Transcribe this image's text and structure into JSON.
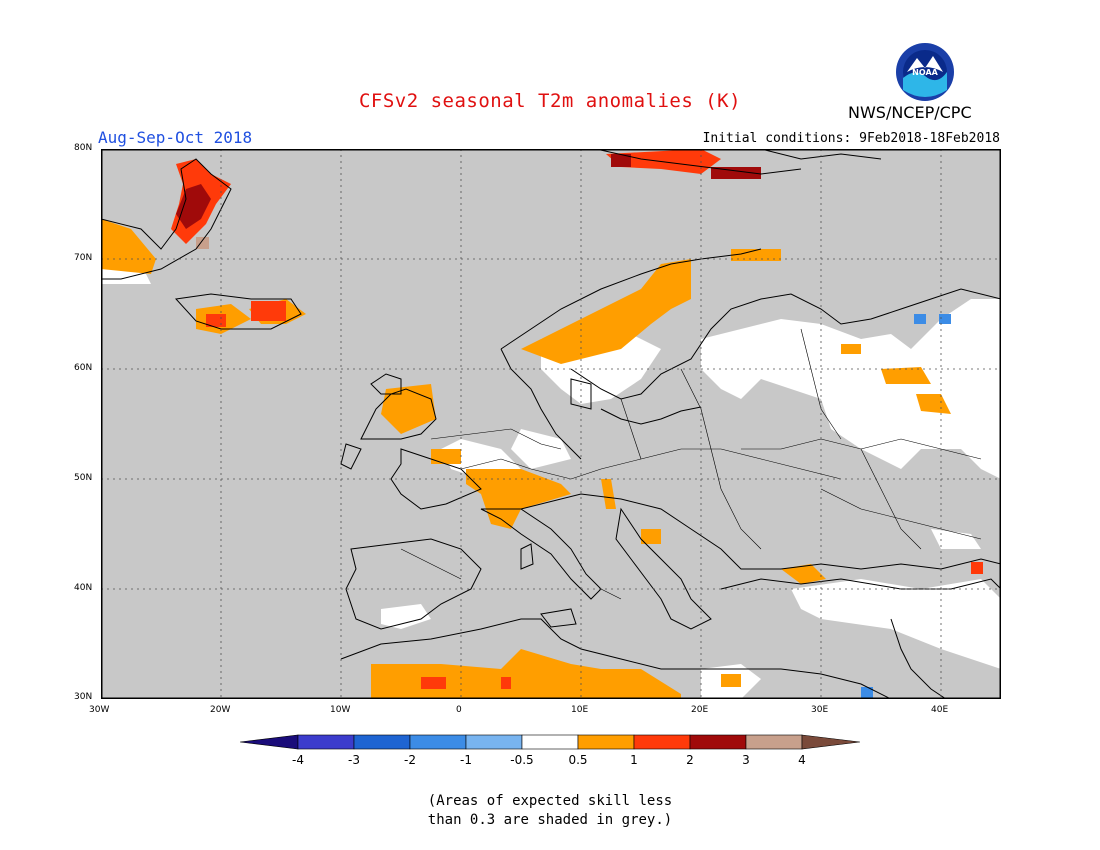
{
  "header": {
    "title": "CFSv2 seasonal T2m anomalies (K)",
    "title_color": "#e01010",
    "period": "Aug-Sep-Oct 2018",
    "period_color": "#2050e0",
    "initial_conditions": "Initial conditions: 9Feb2018-18Feb2018",
    "org": "NWS/NCEP/CPC",
    "logo": "noaa-logo"
  },
  "axes": {
    "lat_labels": [
      "80N",
      "70N",
      "60N",
      "50N",
      "40N",
      "30N"
    ],
    "lon_labels": [
      "30W",
      "20W",
      "10W",
      "0",
      "10E",
      "20E",
      "30E",
      "40E"
    ]
  },
  "colorbar": {
    "labels": [
      "-4",
      "-3",
      "-2",
      "-1",
      "-0.5",
      "0.5",
      "1",
      "2",
      "3",
      "4"
    ],
    "colors": [
      "#1a0c7a",
      "#3c3ccc",
      "#1e64d2",
      "#3c8ce6",
      "#78b4f0",
      "#ffffff",
      "#ff9e00",
      "#ff3a0a",
      "#a00a0a",
      "#c8a08c",
      "#7a4a3a"
    ]
  },
  "legend_colors": {
    "grey": "#c8c8c8",
    "orange": "#ff9e00",
    "red": "#ff3a0a",
    "dark_red": "#a00a0a",
    "tan": "#c8a08c",
    "blue": "#3c8ce6"
  },
  "note": {
    "line1": "(Areas of expected skill less",
    "line2": "than 0.3 are shaded in grey.)"
  }
}
